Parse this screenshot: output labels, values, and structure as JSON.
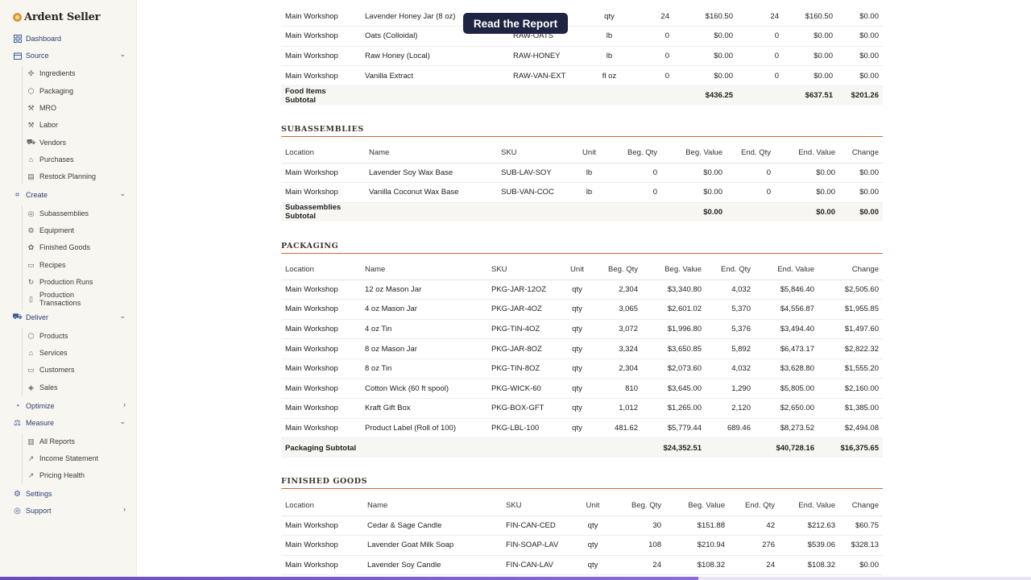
{
  "app": {
    "name": "Ardent Seller"
  },
  "nav": {
    "dashboard": "Dashboard",
    "source": {
      "label": "Source",
      "items": [
        "Ingredients",
        "Packaging",
        "MRO",
        "Labor",
        "Vendors",
        "Purchases",
        "Restock Planning"
      ]
    },
    "create": {
      "label": "Create",
      "items": [
        "Subassemblies",
        "Equipment",
        "Finished Goods",
        "Recipes",
        "Production Runs"
      ],
      "production_tx_line1": "Production",
      "production_tx_line2": "Transactions"
    },
    "deliver": {
      "label": "Deliver",
      "items": [
        "Products",
        "Services",
        "Customers",
        "Sales"
      ]
    },
    "optimize": "Optimize",
    "measure": {
      "label": "Measure",
      "items": [
        "All Reports",
        "Income Statement",
        "Pricing Health"
      ]
    },
    "settings": "Settings",
    "support": "Support"
  },
  "overlay": {
    "label": "Read the Report"
  },
  "progress": {
    "fraction": 0.677
  },
  "columns": {
    "location": "Location",
    "name": "Name",
    "sku": "SKU",
    "unit": "Unit",
    "beg_qty": "Beg. Qty",
    "beg_value": "Beg. Value",
    "end_qty": "End. Qty",
    "end_value": "End. Value",
    "change": "Change"
  },
  "food": {
    "rows": [
      [
        "Main Workshop",
        "Lavender Honey Jar (8 oz)",
        "",
        "qty",
        "24",
        "$160.50",
        "24",
        "$160.50",
        "$0.00"
      ],
      [
        "Main Workshop",
        "Oats (Colloidal)",
        "RAW-OATS",
        "lb",
        "0",
        "$0.00",
        "0",
        "$0.00",
        "$0.00"
      ],
      [
        "Main Workshop",
        "Raw Honey (Local)",
        "RAW-HONEY",
        "lb",
        "0",
        "$0.00",
        "0",
        "$0.00",
        "$0.00"
      ],
      [
        "Main Workshop",
        "Vanilla Extract",
        "RAW-VAN-EXT",
        "fl oz",
        "0",
        "$0.00",
        "0",
        "$0.00",
        "$0.00"
      ]
    ],
    "subtotal": {
      "label": "Food Items Subtotal",
      "beg_value": "$436.25",
      "end_value": "$637.51",
      "change": "$201.26"
    }
  },
  "subassemblies": {
    "title": "SUBASSEMBLIES",
    "rows": [
      [
        "Main Workshop",
        "Lavender Soy Wax Base",
        "SUB-LAV-SOY",
        "lb",
        "0",
        "$0.00",
        "0",
        "$0.00",
        "$0.00"
      ],
      [
        "Main Workshop",
        "Vanilla Coconut Wax Base",
        "SUB-VAN-COC",
        "lb",
        "0",
        "$0.00",
        "0",
        "$0.00",
        "$0.00"
      ]
    ],
    "subtotal": {
      "label": "Subassemblies Subtotal",
      "beg_value": "$0.00",
      "end_value": "$0.00",
      "change": "$0.00"
    }
  },
  "packaging": {
    "title": "PACKAGING",
    "rows": [
      [
        "Main Workshop",
        "12 oz Mason Jar",
        "PKG-JAR-12OZ",
        "qty",
        "2,304",
        "$3,340.80",
        "4,032",
        "$5,846.40",
        "$2,505.60"
      ],
      [
        "Main Workshop",
        "4 oz Mason Jar",
        "PKG-JAR-4OZ",
        "qty",
        "3,065",
        "$2,601.02",
        "5,370",
        "$4,556.87",
        "$1,955.85"
      ],
      [
        "Main Workshop",
        "4 oz Tin",
        "PKG-TIN-4OZ",
        "qty",
        "3,072",
        "$1,996.80",
        "5,376",
        "$3,494.40",
        "$1,497.60"
      ],
      [
        "Main Workshop",
        "8 oz Mason Jar",
        "PKG-JAR-8OZ",
        "qty",
        "3,324",
        "$3,650.85",
        "5,892",
        "$6,473.17",
        "$2,822.32"
      ],
      [
        "Main Workshop",
        "8 oz Tin",
        "PKG-TIN-8OZ",
        "qty",
        "2,304",
        "$2,073.60",
        "4,032",
        "$3,628.80",
        "$1,555.20"
      ],
      [
        "Main Workshop",
        "Cotton Wick (60 ft spool)",
        "PKG-WICK-60",
        "qty",
        "810",
        "$3,645.00",
        "1,290",
        "$5,805.00",
        "$2,160.00"
      ],
      [
        "Main Workshop",
        "Kraft Gift Box",
        "PKG-BOX-GFT",
        "qty",
        "1,012",
        "$1,265.00",
        "2,120",
        "$2,650.00",
        "$1,385.00"
      ],
      [
        "Main Workshop",
        "Product Label (Roll of 100)",
        "PKG-LBL-100",
        "qty",
        "481.62",
        "$5,779.44",
        "689.46",
        "$8,273.52",
        "$2,494.08"
      ]
    ],
    "subtotal": {
      "label": "Packaging Subtotal",
      "beg_value": "$24,352.51",
      "end_value": "$40,728.16",
      "change": "$16,375.65"
    }
  },
  "finished": {
    "title": "FINISHED GOODS",
    "rows": [
      [
        "Main Workshop",
        "Cedar & Sage Candle",
        "FIN-CAN-CED",
        "qty",
        "30",
        "$151.88",
        "42",
        "$212.63",
        "$60.75"
      ],
      [
        "Main Workshop",
        "Lavender Goat Milk Soap",
        "FIN-SOAP-LAV",
        "qty",
        "108",
        "$210.94",
        "276",
        "$539.06",
        "$328.13"
      ],
      [
        "Main Workshop",
        "Lavender Soy Candle",
        "FIN-CAN-LAV",
        "qty",
        "24",
        "$108.32",
        "24",
        "$108.32",
        "$0.00"
      ]
    ]
  }
}
